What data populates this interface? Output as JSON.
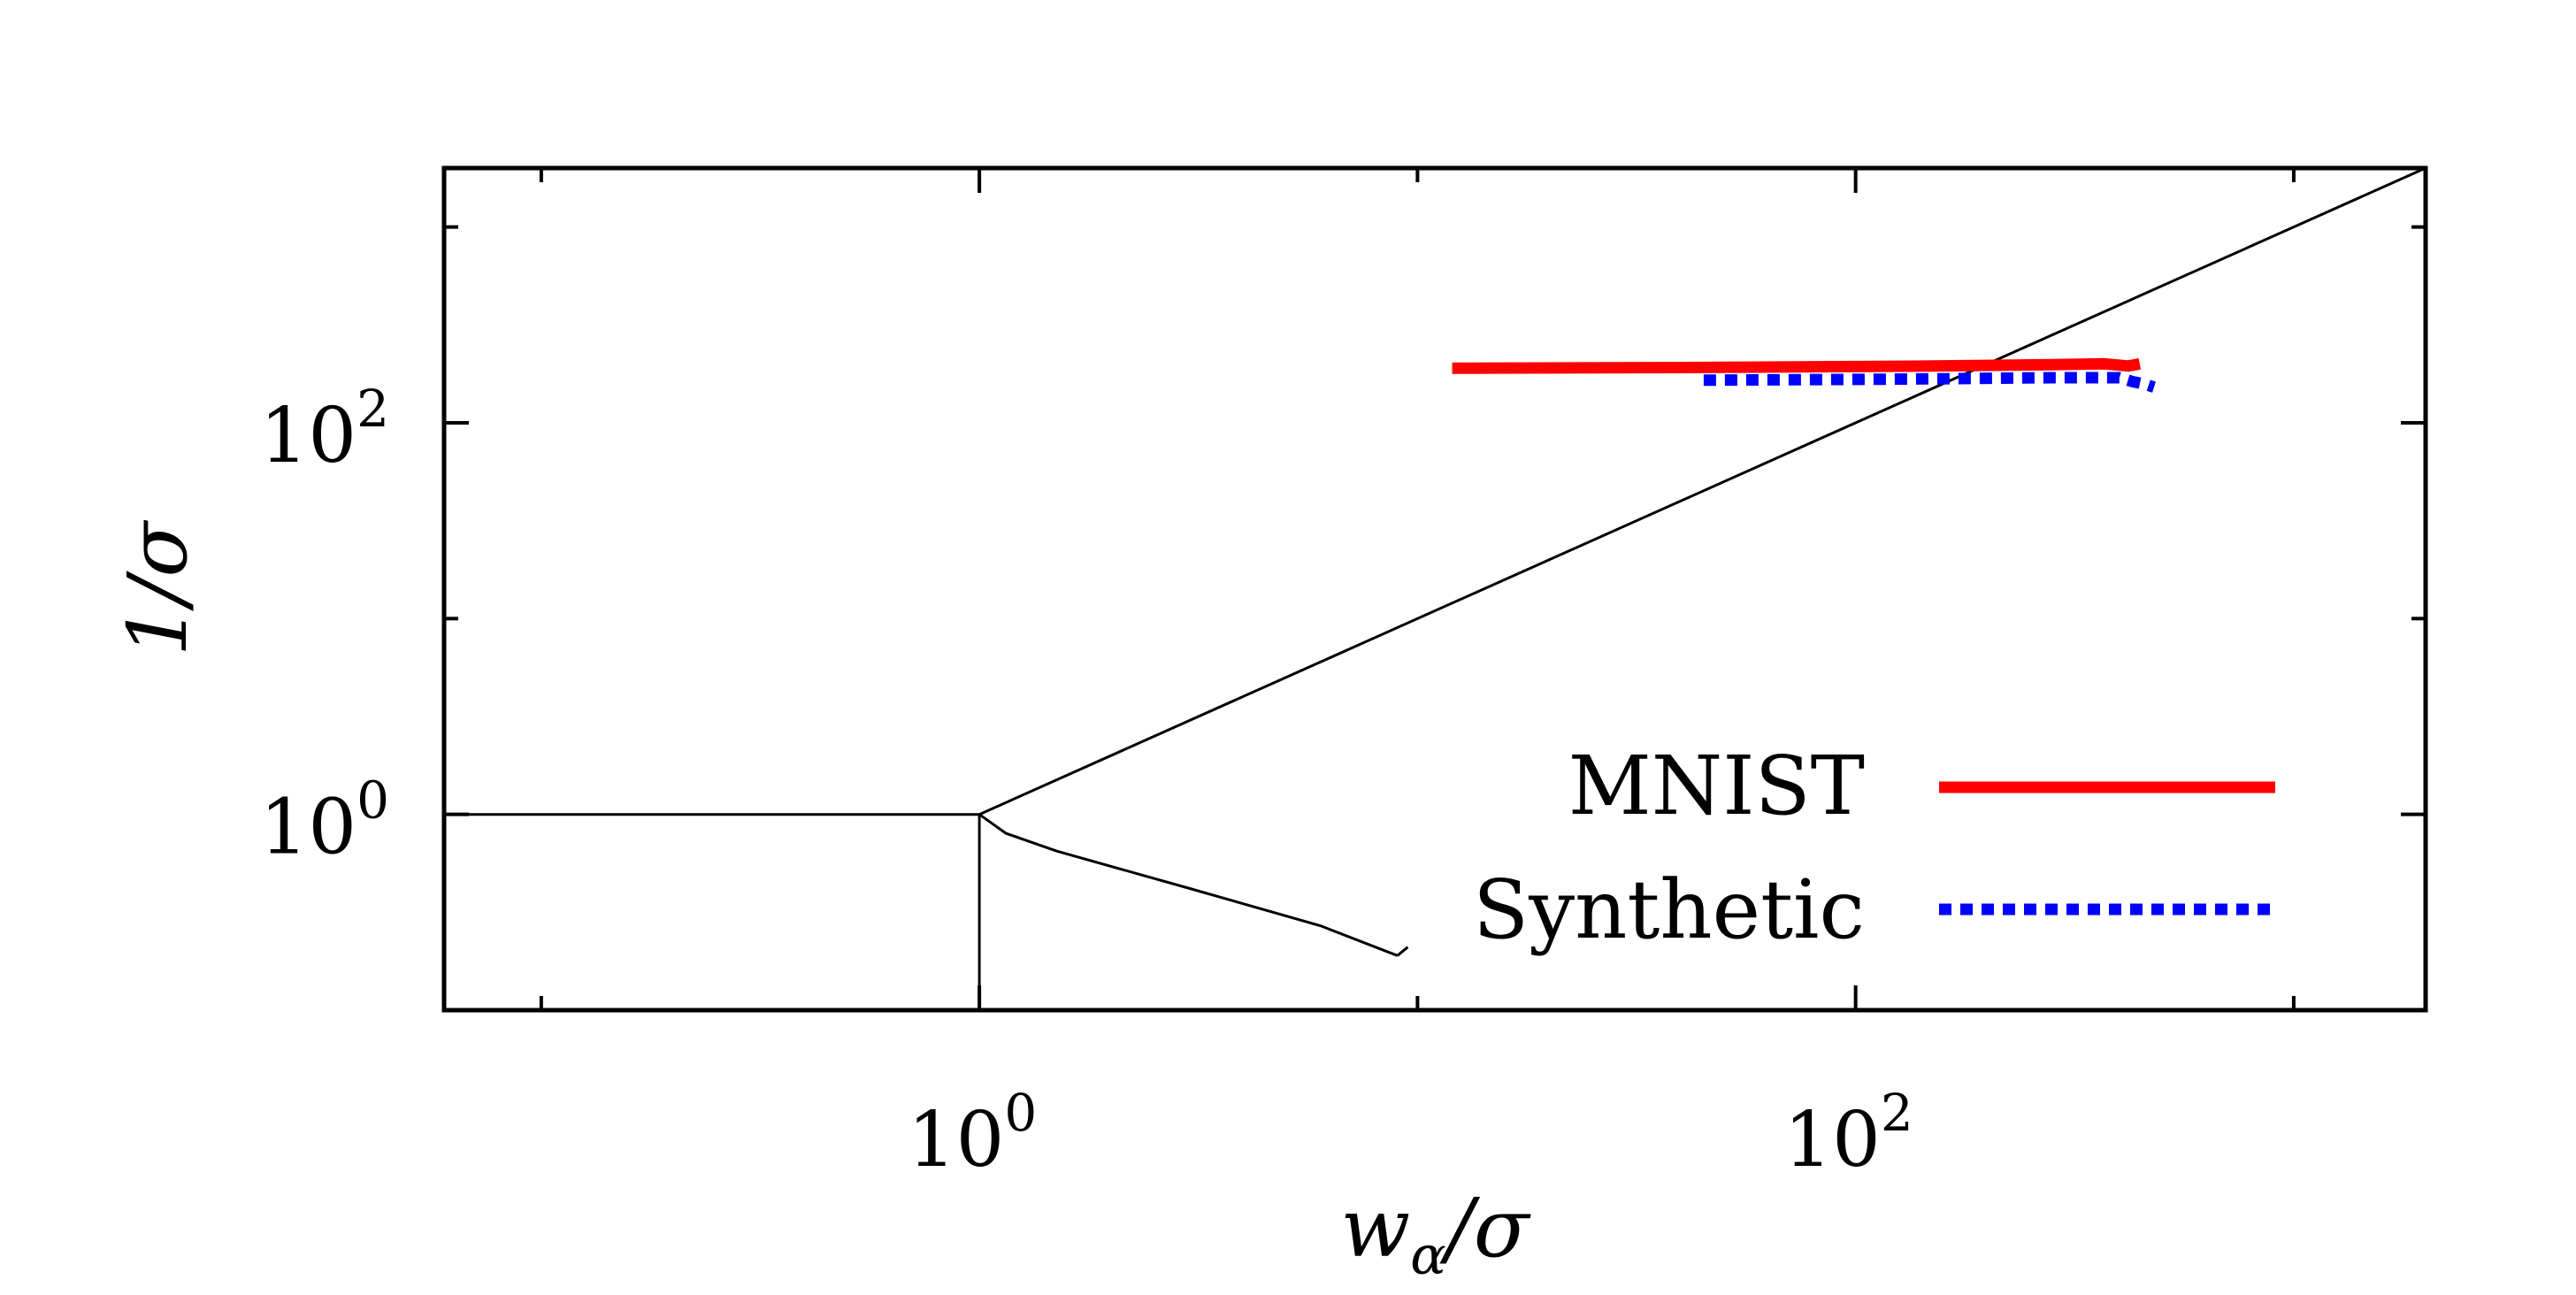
{
  "chart_data": {
    "type": "line",
    "xlabel": {
      "var": "w",
      "sub": "α",
      "rest": "/σ"
    },
    "ylabel": "1/σ",
    "x_scale": "log",
    "y_scale": "log",
    "xlim": [
      0.06,
      2000
    ],
    "ylim": [
      0.1,
      2000
    ],
    "xticks": [
      {
        "value": 1,
        "base": "10",
        "exp": "0"
      },
      {
        "value": 100,
        "base": "10",
        "exp": "2"
      }
    ],
    "yticks": [
      {
        "value": 1,
        "base": "10",
        "exp": "0"
      },
      {
        "value": 100,
        "base": "10",
        "exp": "2"
      }
    ],
    "x_minor_ticks": [
      0.1,
      10,
      1000
    ],
    "y_minor_ticks": [
      0.1,
      10,
      1000
    ],
    "colors": {
      "mnist": "#ff0000",
      "synthetic": "#0000ff",
      "reference": "#000000"
    },
    "reference_curves": [
      {
        "name": "diagonal",
        "points": [
          [
            1,
            1
          ],
          [
            2000,
            2000
          ]
        ]
      },
      {
        "name": "plateau",
        "points": [
          [
            0.06,
            1
          ],
          [
            1,
            1
          ]
        ]
      },
      {
        "name": "vertical",
        "points": [
          [
            1,
            0.1
          ],
          [
            1,
            1
          ]
        ]
      },
      {
        "name": "branch",
        "points": [
          [
            1,
            1
          ],
          [
            1.15,
            0.8
          ],
          [
            1.5,
            0.65
          ],
          [
            3,
            0.42
          ],
          [
            6,
            0.27
          ],
          [
            9,
            0.19
          ]
        ]
      },
      {
        "name": "branch-hook",
        "points": [
          [
            9,
            0.19
          ],
          [
            9.5,
            0.21
          ]
        ]
      }
    ],
    "series": [
      {
        "name": "MNIST",
        "style": "solid",
        "points": [
          [
            12,
            190
          ],
          [
            50,
            192
          ],
          [
            150,
            195
          ],
          [
            280,
            198
          ],
          [
            370,
            200
          ],
          [
            420,
            195
          ],
          [
            445,
            200
          ]
        ]
      },
      {
        "name": "Synthetic",
        "style": "dotted",
        "points": [
          [
            45,
            165
          ],
          [
            120,
            167
          ],
          [
            280,
            170
          ],
          [
            400,
            170
          ],
          [
            430,
            162
          ],
          [
            455,
            158
          ],
          [
            480,
            152
          ]
        ]
      }
    ]
  }
}
